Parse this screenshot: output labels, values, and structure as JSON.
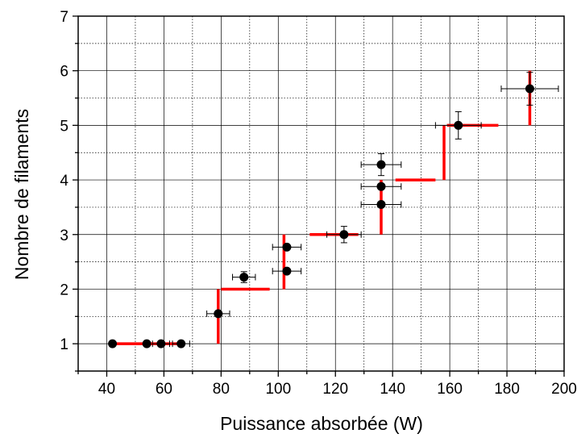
{
  "chart_data": {
    "type": "scatter",
    "xlabel": "Puissance absorbée (W)",
    "ylabel": "Nombre de filaments",
    "xlim": [
      30,
      200
    ],
    "ylim": [
      0.5,
      7
    ],
    "xticks": [
      40,
      60,
      80,
      100,
      120,
      140,
      160,
      180,
      200
    ],
    "yticks": [
      1,
      2,
      3,
      4,
      5,
      6,
      7
    ],
    "grid": true,
    "points": [
      {
        "x": 42,
        "y": 1.0,
        "xerr": 0,
        "yerr": 0
      },
      {
        "x": 54,
        "y": 1.0,
        "xerr": 0,
        "yerr": 0
      },
      {
        "x": 59,
        "y": 1.0,
        "xerr": 3,
        "yerr": 0
      },
      {
        "x": 66,
        "y": 1.0,
        "xerr": 3,
        "yerr": 0
      },
      {
        "x": 79,
        "y": 1.55,
        "xerr": 4,
        "yerr": 0
      },
      {
        "x": 88,
        "y": 2.22,
        "xerr": 4,
        "yerr": 0.1
      },
      {
        "x": 103,
        "y": 2.33,
        "xerr": 5,
        "yerr": 0
      },
      {
        "x": 103,
        "y": 2.77,
        "xerr": 5,
        "yerr": 0
      },
      {
        "x": 123,
        "y": 3.0,
        "xerr": 6,
        "yerr": 0.15
      },
      {
        "x": 136,
        "y": 3.55,
        "xerr": 7,
        "yerr": 0
      },
      {
        "x": 136,
        "y": 3.88,
        "xerr": 7,
        "yerr": 0
      },
      {
        "x": 136,
        "y": 4.28,
        "xerr": 7,
        "yerr": 0.2
      },
      {
        "x": 163,
        "y": 5.0,
        "xerr": 8,
        "yerr": 0.25
      },
      {
        "x": 188,
        "y": 5.67,
        "xerr": 10,
        "yerr": 0.3
      }
    ],
    "red_segments": [
      {
        "x1": 43,
        "y1": 1,
        "x2": 67,
        "y2": 1
      },
      {
        "x1": 79,
        "y1": 1,
        "x2": 79,
        "y2": 2
      },
      {
        "x1": 80,
        "y1": 2,
        "x2": 97,
        "y2": 2
      },
      {
        "x1": 102,
        "y1": 2,
        "x2": 102,
        "y2": 3
      },
      {
        "x1": 111,
        "y1": 3,
        "x2": 128,
        "y2": 3
      },
      {
        "x1": 136,
        "y1": 3,
        "x2": 136,
        "y2": 4
      },
      {
        "x1": 141,
        "y1": 4,
        "x2": 155,
        "y2": 4
      },
      {
        "x1": 158,
        "y1": 4,
        "x2": 158,
        "y2": 5
      },
      {
        "x1": 159,
        "y1": 5,
        "x2": 177,
        "y2": 5
      },
      {
        "x1": 188,
        "y1": 5,
        "x2": 188,
        "y2": 6
      }
    ],
    "colors": {
      "points": "#000000",
      "steps": "#ff0000",
      "grid": "#000000"
    }
  }
}
